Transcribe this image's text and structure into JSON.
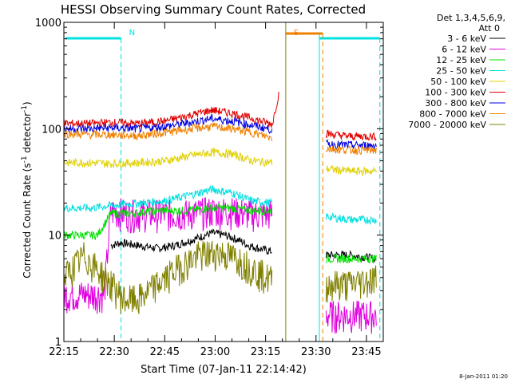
{
  "chart_data": {
    "type": "line",
    "title": "HESSI Observing Summary Count Rates, Corrected",
    "xlabel": "Start Time (07-Jan-11 22:14:42)",
    "ylabel": "Corrected Count Rate (s⁻¹ detector⁻¹)",
    "ylabel_main": "Corrected Count Rate (s",
    "ylabel_sup1": "-1",
    "ylabel_mid": " detector",
    "ylabel_sup2": "-1",
    "ylabel_end": ")",
    "x_range_minutes": [
      0,
      95
    ],
    "y_scale": "log",
    "ylim": [
      1,
      1000
    ],
    "x_ticks": [
      {
        "label": "22:15",
        "minute": 0
      },
      {
        "label": "22:30",
        "minute": 15
      },
      {
        "label": "22:45",
        "minute": 30
      },
      {
        "label": "23:00",
        "minute": 45
      },
      {
        "label": "23:15",
        "minute": 60
      },
      {
        "label": "23:30",
        "minute": 75
      },
      {
        "label": "23:45",
        "minute": 90
      }
    ],
    "y_ticks": [
      {
        "label": "1",
        "value": 1
      },
      {
        "label": "10",
        "value": 10
      },
      {
        "label": "100",
        "value": 100
      },
      {
        "label": "1000",
        "value": 1000
      }
    ],
    "legend_position": "right, outside plot",
    "legend_header": [
      "Det 1,3,4,5,6,9,",
      "Att 0"
    ],
    "series": [
      {
        "name": "3 - 6 keV",
        "color": "#000000",
        "x": [
          14,
          17,
          22,
          28,
          33,
          38,
          44,
          48,
          52,
          55,
          58,
          62
        ],
        "y": [
          8,
          8.5,
          8,
          7.5,
          8,
          9,
          10.5,
          10,
          9,
          8,
          7.5,
          7
        ],
        "x2": [
          78,
          85,
          93
        ],
        "y2": [
          6.5,
          6.5,
          6
        ]
      },
      {
        "name": "6 - 12 keV",
        "color": "#e000e0",
        "x": [
          0,
          12,
          14,
          20,
          28,
          36,
          44,
          50,
          56,
          62
        ],
        "y": [
          2.8,
          2.8,
          17,
          16,
          16,
          16,
          17,
          17,
          16,
          16
        ],
        "x2": [
          78,
          85,
          93
        ],
        "y2": [
          1.8,
          1.8,
          1.8
        ]
      },
      {
        "name": "12 - 25 keV",
        "color": "#00e000",
        "x": [
          0,
          10,
          14,
          20,
          28,
          36,
          44,
          50,
          56,
          62
        ],
        "y": [
          10,
          10,
          16,
          16,
          17,
          17,
          18,
          18,
          17,
          17
        ],
        "x2": [
          78,
          85,
          93
        ],
        "y2": [
          6,
          6,
          6
        ]
      },
      {
        "name": "25 - 50 keV",
        "color": "#00e0e0",
        "x": [
          0,
          8,
          14,
          22,
          30,
          38,
          44,
          50,
          56,
          62
        ],
        "y": [
          18,
          18,
          19,
          20,
          21,
          24,
          27,
          25,
          21,
          20
        ],
        "x2": [
          78,
          85,
          93
        ],
        "y2": [
          15,
          14,
          14
        ]
      },
      {
        "name": "50 - 100 keV",
        "color": "#e0d000",
        "x": [
          0,
          8,
          14,
          22,
          30,
          38,
          44,
          50,
          56,
          62
        ],
        "y": [
          48,
          48,
          47,
          48,
          50,
          56,
          60,
          58,
          50,
          48
        ],
        "x2": [
          78,
          85,
          93
        ],
        "y2": [
          42,
          40,
          40
        ]
      },
      {
        "name": "100 - 300 keV",
        "color": "#e00000",
        "x": [
          0,
          8,
          14,
          22,
          30,
          38,
          44,
          50,
          56,
          62,
          64
        ],
        "y": [
          112,
          112,
          115,
          112,
          118,
          135,
          150,
          140,
          125,
          110,
          220
        ],
        "x2": [
          78,
          85,
          93
        ],
        "y2": [
          90,
          85,
          85
        ]
      },
      {
        "name": "300 - 800 keV",
        "color": "#0000e0",
        "x": [
          0,
          8,
          14,
          22,
          30,
          38,
          44,
          50,
          56,
          62
        ],
        "y": [
          100,
          100,
          102,
          100,
          105,
          115,
          125,
          118,
          108,
          98
        ],
        "x2": [
          78,
          85,
          93
        ],
        "y2": [
          72,
          70,
          70
        ]
      },
      {
        "name": "800 - 7000 keV",
        "color": "#f08000",
        "x": [
          0,
          8,
          14,
          22,
          30,
          38,
          44,
          50,
          56,
          62
        ],
        "y": [
          90,
          88,
          88,
          86,
          92,
          100,
          105,
          100,
          92,
          82
        ],
        "x2": [
          78,
          85,
          93
        ],
        "y2": [
          65,
          63,
          63
        ]
      },
      {
        "name": "7000 - 20000 keV",
        "color": "#808000",
        "x": [
          0,
          6,
          14,
          18,
          22,
          28,
          34,
          40,
          46,
          52,
          58,
          62
        ],
        "y": [
          4,
          6.5,
          3.5,
          2.5,
          2.5,
          3.5,
          5,
          6.5,
          7,
          6,
          4.5,
          3.8
        ],
        "x2": [
          78,
          85,
          93
        ],
        "y2": [
          3.5,
          3.5,
          4
        ]
      }
    ],
    "annotations": [
      {
        "text": "N",
        "minute": 17,
        "color": "#00e0e0"
      },
      {
        "text": "S",
        "minute": 66,
        "color": "#f08000"
      }
    ],
    "footer_date": "8-Jan-2011 01:20"
  }
}
